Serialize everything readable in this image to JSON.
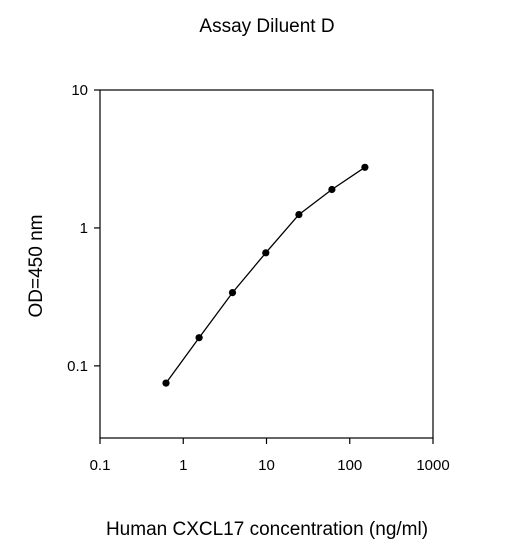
{
  "chart_data": {
    "type": "line",
    "title": "Assay Diluent D",
    "xlabel": "Human CXCL17 concentration (ng/ml)",
    "ylabel": "OD=450 nm",
    "x_scale": "log",
    "y_scale": "log",
    "xlim": [
      0.1,
      1000
    ],
    "ylim": [
      0.03,
      10
    ],
    "x_ticks": [
      0.1,
      1,
      10,
      100,
      1000
    ],
    "x_tick_labels": [
      "0.1",
      "1",
      "10",
      "100",
      "1000"
    ],
    "y_ticks": [
      0.1,
      1,
      10
    ],
    "y_tick_labels": [
      "0.1",
      "1",
      "10"
    ],
    "grid": false,
    "series": [
      {
        "x": [
          0.62,
          1.55,
          3.9,
          9.8,
          24.5,
          61,
          152
        ],
        "y": [
          0.075,
          0.16,
          0.34,
          0.66,
          1.25,
          1.9,
          2.75
        ],
        "color": "#000000",
        "marker": "circle"
      }
    ]
  }
}
